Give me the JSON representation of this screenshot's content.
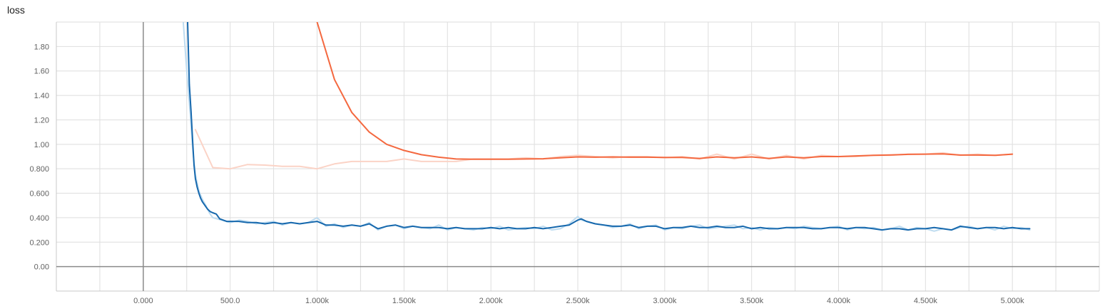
{
  "chart_data": {
    "type": "line",
    "title": "loss",
    "xlim": [
      -500,
      5500
    ],
    "ylim": [
      -0.2,
      2.0
    ],
    "x_ticks": [
      {
        "v": 0,
        "label": "0.000"
      },
      {
        "v": 500,
        "label": "500.0"
      },
      {
        "v": 1000,
        "label": "1.000k"
      },
      {
        "v": 1500,
        "label": "1.500k"
      },
      {
        "v": 2000,
        "label": "2.000k"
      },
      {
        "v": 2500,
        "label": "2.500k"
      },
      {
        "v": 3000,
        "label": "3.000k"
      },
      {
        "v": 3500,
        "label": "3.500k"
      },
      {
        "v": 4000,
        "label": "4.000k"
      },
      {
        "v": 4500,
        "label": "4.500k"
      },
      {
        "v": 5000,
        "label": "5.000k"
      }
    ],
    "y_ticks": [
      {
        "v": 0.0,
        "label": "0.00"
      },
      {
        "v": 0.2,
        "label": "0.200"
      },
      {
        "v": 0.4,
        "label": "0.400"
      },
      {
        "v": 0.6,
        "label": "0.600"
      },
      {
        "v": 0.8,
        "label": "0.800"
      },
      {
        "v": 1.0,
        "label": "1.00"
      },
      {
        "v": 1.2,
        "label": "1.20"
      },
      {
        "v": 1.4,
        "label": "1.40"
      },
      {
        "v": 1.6,
        "label": "1.60"
      },
      {
        "v": 1.8,
        "label": "1.80"
      }
    ],
    "grid": true,
    "series": [
      {
        "id": "orange_raw",
        "color": "#fbd3c6",
        "width": 2,
        "x": [
          300,
          400,
          500,
          600,
          700,
          800,
          900,
          1000,
          1100,
          1200,
          1300,
          1400,
          1500,
          1600,
          1700,
          1800,
          1900,
          2000,
          2100,
          2200,
          2300,
          2400,
          2500,
          2600,
          2700,
          2800,
          2900,
          3000,
          3100,
          3200,
          3300,
          3400,
          3500,
          3600,
          3700,
          3800,
          3900,
          4000,
          4100,
          4200,
          4300,
          4400,
          4500,
          4600,
          4700,
          4800,
          4900,
          5000
        ],
        "y": [
          1.12,
          0.81,
          0.8,
          0.835,
          0.83,
          0.82,
          0.82,
          0.8,
          0.84,
          0.86,
          0.86,
          0.86,
          0.88,
          0.86,
          0.86,
          0.86,
          0.88,
          0.88,
          0.88,
          0.89,
          0.88,
          0.9,
          0.91,
          0.9,
          0.89,
          0.9,
          0.9,
          0.89,
          0.9,
          0.88,
          0.92,
          0.88,
          0.92,
          0.88,
          0.91,
          0.88,
          0.91,
          0.9,
          0.9,
          0.91,
          0.91,
          0.92,
          0.92,
          0.93,
          0.91,
          0.92,
          0.91,
          0.92
        ]
      },
      {
        "id": "orange_smoothed",
        "color": "#f4683f",
        "width": 2,
        "x": [
          1000,
          1100,
          1200,
          1300,
          1400,
          1500,
          1600,
          1700,
          1800,
          1900,
          2000,
          2100,
          2200,
          2300,
          2400,
          2500,
          2600,
          2700,
          2800,
          2900,
          3000,
          3100,
          3200,
          3300,
          3400,
          3500,
          3600,
          3700,
          3800,
          3900,
          4000,
          4100,
          4200,
          4300,
          4400,
          4500,
          4600,
          4700,
          4800,
          4900,
          5000
        ],
        "y": [
          2.0,
          1.53,
          1.26,
          1.1,
          1.0,
          0.95,
          0.915,
          0.895,
          0.88,
          0.878,
          0.878,
          0.878,
          0.88,
          0.882,
          0.89,
          0.897,
          0.895,
          0.897,
          0.895,
          0.895,
          0.893,
          0.893,
          0.885,
          0.897,
          0.89,
          0.897,
          0.885,
          0.897,
          0.89,
          0.9,
          0.9,
          0.905,
          0.91,
          0.913,
          0.918,
          0.92,
          0.922,
          0.912,
          0.912,
          0.91,
          0.92
        ]
      },
      {
        "id": "blue_raw",
        "color": "#bfdcf0",
        "width": 2,
        "x": [
          230,
          250,
          270,
          285,
          300,
          320,
          340,
          360,
          380,
          400,
          450,
          500,
          550,
          600,
          650,
          700,
          750,
          800,
          850,
          900,
          950,
          1000,
          1050,
          1100,
          1150,
          1200,
          1250,
          1300,
          1350,
          1400,
          1450,
          1500,
          1550,
          1600,
          1650,
          1700,
          1750,
          1800,
          1850,
          1900,
          1950,
          2000,
          2050,
          2100,
          2150,
          2200,
          2250,
          2300,
          2350,
          2400,
          2450,
          2500,
          2520,
          2550,
          2600,
          2650,
          2700,
          2750,
          2800,
          2850,
          2900,
          2950,
          3000,
          3050,
          3100,
          3150,
          3200,
          3250,
          3300,
          3350,
          3400,
          3450,
          3500,
          3550,
          3600,
          3650,
          3700,
          3750,
          3800,
          3850,
          3900,
          3950,
          4000,
          4050,
          4100,
          4150,
          4200,
          4250,
          4300,
          4350,
          4400,
          4450,
          4500,
          4550,
          4600,
          4650,
          4700,
          4750,
          4800,
          4850,
          4900,
          4950,
          5000,
          5050,
          5100
        ],
        "y": [
          2.0,
          1.6,
          1.25,
          0.95,
          0.75,
          0.62,
          0.55,
          0.5,
          0.44,
          0.4,
          0.38,
          0.36,
          0.38,
          0.37,
          0.35,
          0.36,
          0.37,
          0.34,
          0.36,
          0.35,
          0.36,
          0.4,
          0.33,
          0.35,
          0.32,
          0.34,
          0.33,
          0.36,
          0.3,
          0.33,
          0.34,
          0.31,
          0.33,
          0.32,
          0.31,
          0.34,
          0.3,
          0.32,
          0.31,
          0.3,
          0.32,
          0.31,
          0.33,
          0.3,
          0.31,
          0.32,
          0.31,
          0.33,
          0.3,
          0.31,
          0.35,
          0.41,
          0.38,
          0.37,
          0.35,
          0.34,
          0.32,
          0.33,
          0.35,
          0.31,
          0.33,
          0.34,
          0.3,
          0.32,
          0.31,
          0.33,
          0.34,
          0.31,
          0.32,
          0.33,
          0.34,
          0.31,
          0.32,
          0.3,
          0.32,
          0.31,
          0.32,
          0.31,
          0.33,
          0.32,
          0.31,
          0.32,
          0.33,
          0.3,
          0.32,
          0.31,
          0.32,
          0.3,
          0.31,
          0.33,
          0.3,
          0.32,
          0.31,
          0.29,
          0.31,
          0.3,
          0.32,
          0.33,
          0.31,
          0.32,
          0.3,
          0.33,
          0.31,
          0.32,
          0.3
        ]
      },
      {
        "id": "blue_smoothed",
        "color": "#1668ad",
        "width": 2,
        "x": [
          255,
          265,
          275,
          285,
          292,
          300,
          310,
          320,
          330,
          340,
          355,
          370,
          385,
          400,
          420,
          440,
          460,
          480,
          500,
          550,
          600,
          650,
          700,
          750,
          800,
          850,
          900,
          950,
          1000,
          1050,
          1100,
          1150,
          1200,
          1250,
          1300,
          1350,
          1400,
          1450,
          1500,
          1550,
          1600,
          1650,
          1700,
          1750,
          1800,
          1850,
          1900,
          1950,
          2000,
          2050,
          2100,
          2150,
          2200,
          2250,
          2300,
          2350,
          2400,
          2450,
          2500,
          2520,
          2550,
          2600,
          2650,
          2700,
          2750,
          2800,
          2850,
          2900,
          2950,
          3000,
          3050,
          3100,
          3150,
          3200,
          3250,
          3300,
          3350,
          3400,
          3450,
          3500,
          3550,
          3600,
          3650,
          3700,
          3750,
          3800,
          3850,
          3900,
          3950,
          4000,
          4050,
          4100,
          4150,
          4200,
          4250,
          4300,
          4350,
          4400,
          4450,
          4500,
          4550,
          4600,
          4650,
          4700,
          4750,
          4800,
          4850,
          4900,
          4950,
          5000,
          5050,
          5100
        ],
        "y": [
          2.0,
          1.49,
          1.27,
          1.0,
          0.83,
          0.72,
          0.65,
          0.6,
          0.56,
          0.53,
          0.5,
          0.47,
          0.45,
          0.44,
          0.43,
          0.39,
          0.38,
          0.37,
          0.37,
          0.37,
          0.36,
          0.36,
          0.35,
          0.36,
          0.35,
          0.36,
          0.35,
          0.36,
          0.37,
          0.34,
          0.34,
          0.33,
          0.34,
          0.33,
          0.35,
          0.31,
          0.33,
          0.34,
          0.32,
          0.33,
          0.32,
          0.32,
          0.32,
          0.31,
          0.32,
          0.31,
          0.31,
          0.31,
          0.32,
          0.31,
          0.32,
          0.31,
          0.31,
          0.32,
          0.31,
          0.32,
          0.33,
          0.34,
          0.38,
          0.39,
          0.37,
          0.35,
          0.34,
          0.33,
          0.33,
          0.34,
          0.32,
          0.33,
          0.33,
          0.31,
          0.32,
          0.32,
          0.33,
          0.32,
          0.32,
          0.33,
          0.32,
          0.32,
          0.33,
          0.31,
          0.32,
          0.31,
          0.31,
          0.32,
          0.32,
          0.32,
          0.31,
          0.31,
          0.32,
          0.32,
          0.31,
          0.32,
          0.32,
          0.31,
          0.3,
          0.31,
          0.31,
          0.3,
          0.31,
          0.31,
          0.32,
          0.31,
          0.3,
          0.33,
          0.32,
          0.31,
          0.32,
          0.32,
          0.31,
          0.32,
          0.31,
          0.31
        ]
      }
    ]
  }
}
